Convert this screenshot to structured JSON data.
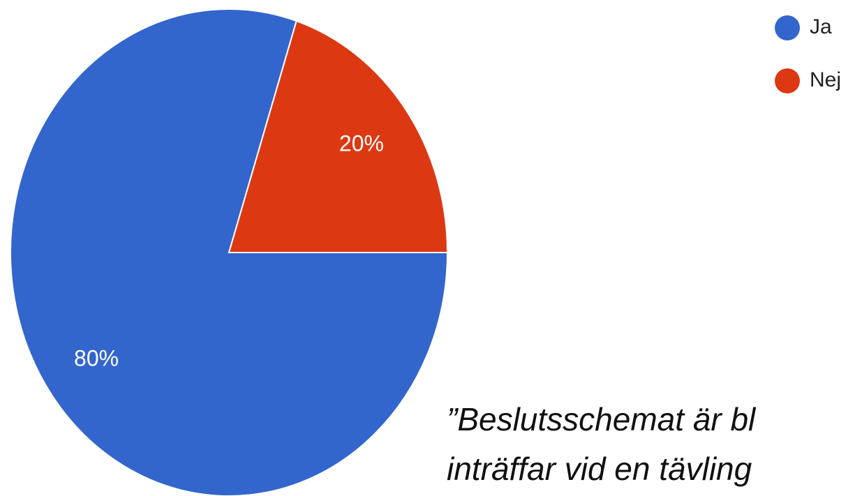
{
  "chart_data": {
    "type": "pie",
    "categories": [
      "Ja",
      "Nej"
    ],
    "values": [
      80,
      20
    ],
    "value_labels": [
      "80%",
      "20%"
    ],
    "colors": [
      "#3366cc",
      "#dc3912"
    ],
    "legend": "top-right",
    "annotations": [
      "”Beslutsschemat är bl",
      "inträffar vid en tävling"
    ]
  }
}
